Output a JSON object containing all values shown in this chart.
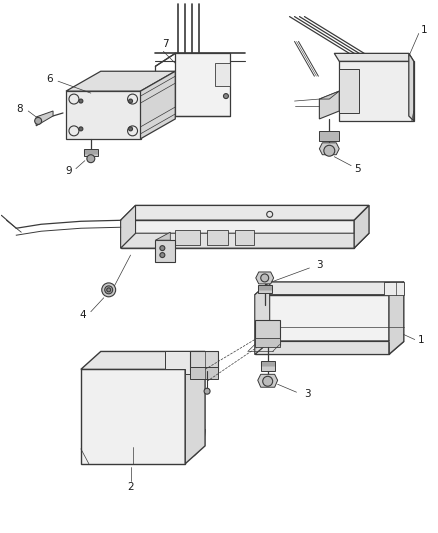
{
  "background_color": "#ffffff",
  "line_color": "#3a3a3a",
  "label_color": "#1a1a1a",
  "fig_width": 4.39,
  "fig_height": 5.33,
  "dpi": 100
}
